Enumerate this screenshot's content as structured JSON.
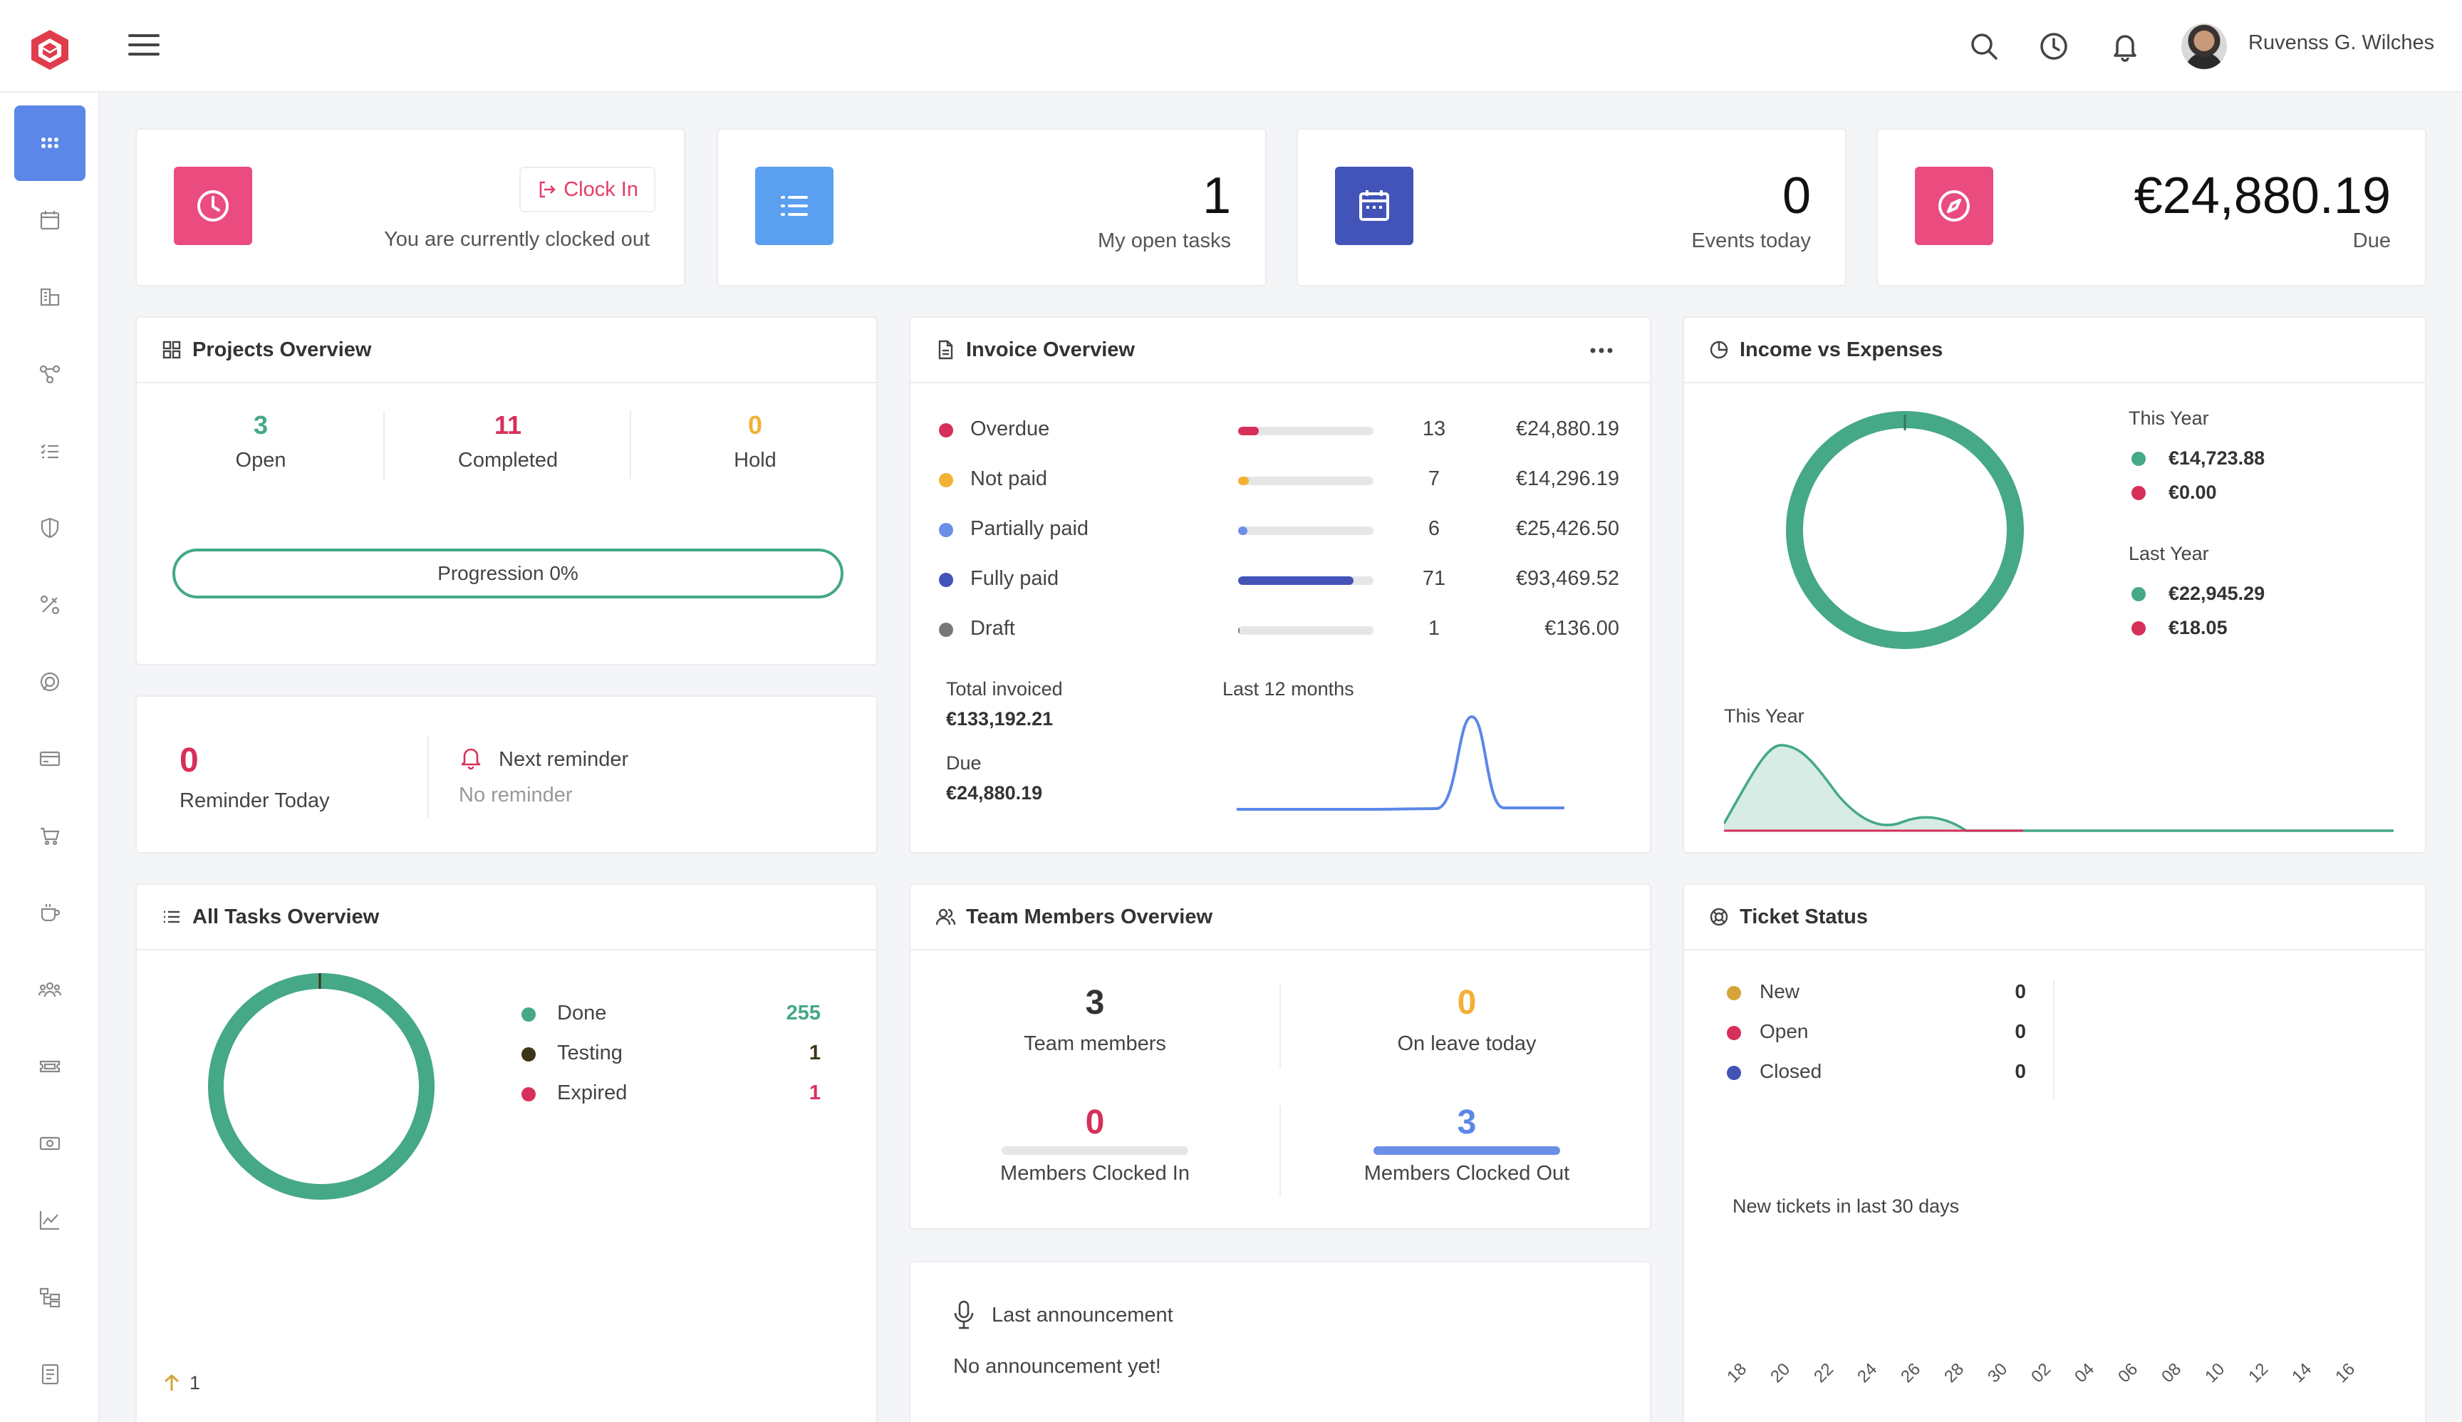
{
  "header": {
    "user_name": "Ruvenss G. Wilches"
  },
  "colors": {
    "pink": "#ea4c80",
    "blue": "#5b9ff0",
    "indigo": "#4354b8",
    "green": "#45a886",
    "red": "#d6305a",
    "amber": "#f2b134",
    "dark": "#333333"
  },
  "sidebar": {
    "icons": [
      "dashboard-icon",
      "calendar-icon",
      "clients-icon",
      "projects-icon",
      "tasks-icon",
      "leads-icon",
      "tools-icon",
      "support-icon",
      "invoices-icon",
      "store-icon",
      "coffee-icon",
      "team-icon",
      "tickets-icon",
      "expenses-icon",
      "reports-icon",
      "structure-icon",
      "notes-icon"
    ]
  },
  "clock": {
    "button_label": "Clock In",
    "status_text": "You are currently clocked out"
  },
  "stats": {
    "tasks": {
      "value": "1",
      "label": "My open tasks"
    },
    "events": {
      "value": "0",
      "label": "Events today"
    },
    "due": {
      "value": "€24,880.19",
      "label": "Due"
    }
  },
  "projects": {
    "title": "Projects Overview",
    "open": {
      "value": "3",
      "label": "Open"
    },
    "completed": {
      "value": "11",
      "label": "Completed"
    },
    "hold": {
      "value": "0",
      "label": "Hold"
    },
    "progress_label": "Progression 0%",
    "progress": 0
  },
  "reminder": {
    "count": "0",
    "label": "Reminder Today",
    "next_title": "Next reminder",
    "next_value": "No reminder"
  },
  "invoice": {
    "title": "Invoice Overview",
    "rows": [
      {
        "name": "Overdue",
        "fraction": 0.15,
        "count": "13",
        "amount": "€24,880.19",
        "color": "#d6305a"
      },
      {
        "name": "Not paid",
        "fraction": 0.08,
        "count": "7",
        "amount": "€14,296.19",
        "color": "#f2b134"
      },
      {
        "name": "Partially paid",
        "fraction": 0.07,
        "count": "6",
        "amount": "€25,426.50",
        "color": "#6b8fe6"
      },
      {
        "name": "Fully paid",
        "fraction": 0.85,
        "count": "71",
        "amount": "€93,469.52",
        "color": "#4354b8"
      },
      {
        "name": "Draft",
        "fraction": 0.01,
        "count": "1",
        "amount": "€136.00",
        "color": "#777777"
      }
    ],
    "total_label": "Total invoiced",
    "total_value": "€133,192.21",
    "due_label": "Due",
    "due_value": "€24,880.19",
    "chart_label": "Last 12 months"
  },
  "income": {
    "title": "Income vs Expenses",
    "this_year_label": "This Year",
    "this_year_income": "€14,723.88",
    "this_year_expense": "€0.00",
    "last_year_label": "Last Year",
    "last_year_income": "€22,945.29",
    "last_year_expense": "€18.05",
    "chart_label": "This Year"
  },
  "tasks_overview": {
    "title": "All Tasks Overview",
    "items": [
      {
        "name": "Done",
        "value": "255",
        "color": "#45a886"
      },
      {
        "name": "Testing",
        "value": "1",
        "color": "#3d3417"
      },
      {
        "name": "Expired",
        "value": "1",
        "color": "#d6305a"
      }
    ],
    "footer_value": "1"
  },
  "team": {
    "title": "Team Members Overview",
    "members": {
      "value": "3",
      "label": "Team members"
    },
    "on_leave": {
      "value": "0",
      "label": "On leave today"
    },
    "clocked_in": {
      "value": "0",
      "label": "Members Clocked In"
    },
    "clocked_out": {
      "value": "3",
      "label": "Members Clocked Out"
    }
  },
  "announcement": {
    "title": "Last announcement",
    "text": "No announcement yet!"
  },
  "tickets": {
    "title": "Ticket Status",
    "items": [
      {
        "name": "New",
        "value": "0",
        "color": "#d4a43a"
      },
      {
        "name": "Open",
        "value": "0",
        "color": "#d6305a"
      },
      {
        "name": "Closed",
        "value": "0",
        "color": "#4354b8"
      }
    ],
    "chart_label": "New tickets in last 30 days",
    "x_ticks": [
      "18",
      "20",
      "22",
      "24",
      "26",
      "28",
      "30",
      "02",
      "04",
      "06",
      "08",
      "10",
      "12",
      "14",
      "16"
    ]
  }
}
